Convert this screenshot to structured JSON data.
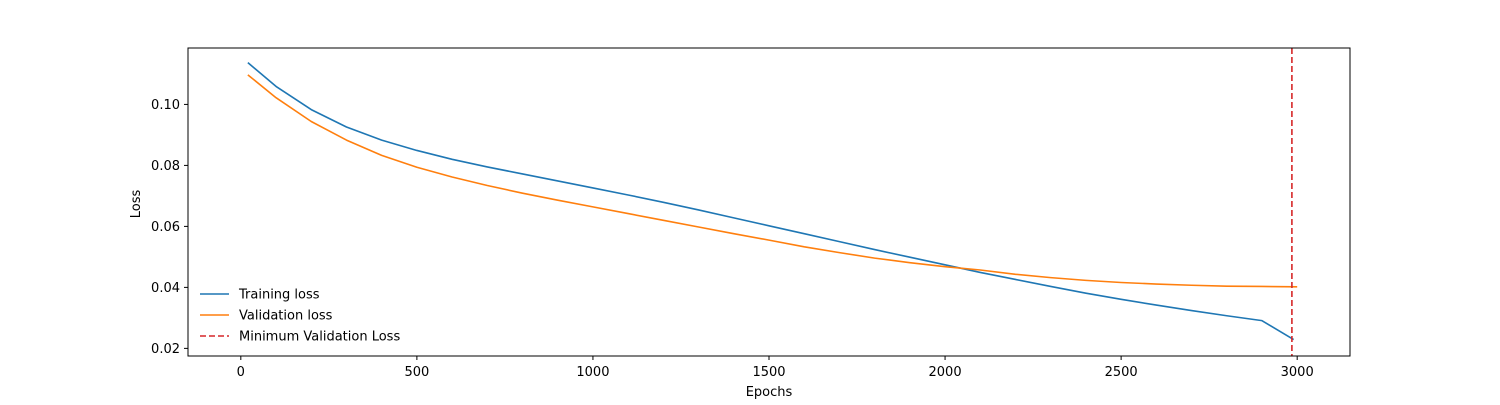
{
  "chart_data": {
    "type": "line",
    "title": "",
    "xlabel": "Epochs",
    "ylabel": "Loss",
    "xlim": [
      -150,
      3150
    ],
    "ylim": [
      0.0175,
      0.1185
    ],
    "x_ticks": [
      0,
      500,
      1000,
      1500,
      2000,
      2500,
      3000
    ],
    "y_ticks": [
      0.02,
      0.04,
      0.06,
      0.08,
      0.1
    ],
    "x_tick_labels": [
      "0",
      "500",
      "1000",
      "1500",
      "2000",
      "2500",
      "3000"
    ],
    "y_tick_labels": [
      "0.02",
      "0.04",
      "0.06",
      "0.08",
      "0.10"
    ],
    "grid": false,
    "legend_position": "lower-left",
    "legend_frame": false,
    "series": [
      {
        "name": "Training loss",
        "color": "#1f77b4",
        "style": "solid",
        "x": [
          20,
          100,
          200,
          300,
          400,
          500,
          600,
          700,
          800,
          900,
          1000,
          1100,
          1200,
          1300,
          1400,
          1500,
          1600,
          1700,
          1800,
          1900,
          2000,
          2100,
          2200,
          2300,
          2400,
          2500,
          2600,
          2700,
          2800,
          2900,
          2990
        ],
        "y": [
          0.1137,
          0.1059,
          0.0983,
          0.0926,
          0.0883,
          0.0849,
          0.082,
          0.0795,
          0.0772,
          0.0749,
          0.0726,
          0.0703,
          0.0679,
          0.0654,
          0.0628,
          0.0602,
          0.0576,
          0.055,
          0.0524,
          0.0499,
          0.0474,
          0.0449,
          0.0426,
          0.0403,
          0.0381,
          0.0361,
          0.0342,
          0.0324,
          0.0307,
          0.0291,
          0.0229
        ]
      },
      {
        "name": "Validation loss",
        "color": "#ff7f0e",
        "style": "solid",
        "x": [
          20,
          100,
          200,
          300,
          400,
          500,
          600,
          700,
          800,
          900,
          1000,
          1100,
          1200,
          1300,
          1400,
          1500,
          1600,
          1700,
          1800,
          1900,
          2000,
          2100,
          2200,
          2300,
          2400,
          2500,
          2600,
          2700,
          2800,
          2900,
          3000
        ],
        "y": [
          0.1097,
          0.1022,
          0.0944,
          0.0883,
          0.0833,
          0.0794,
          0.0762,
          0.0734,
          0.0709,
          0.0686,
          0.0664,
          0.0642,
          0.062,
          0.0598,
          0.0576,
          0.0555,
          0.0533,
          0.0514,
          0.0496,
          0.0481,
          0.0468,
          0.0457,
          0.0443,
          0.0432,
          0.0423,
          0.0416,
          0.0411,
          0.0407,
          0.0404,
          0.0403,
          0.0402
        ]
      }
    ],
    "vlines": [
      {
        "name": "Minimum Validation Loss",
        "x": 2985,
        "color": "#d62728",
        "style": "dashed"
      }
    ]
  }
}
